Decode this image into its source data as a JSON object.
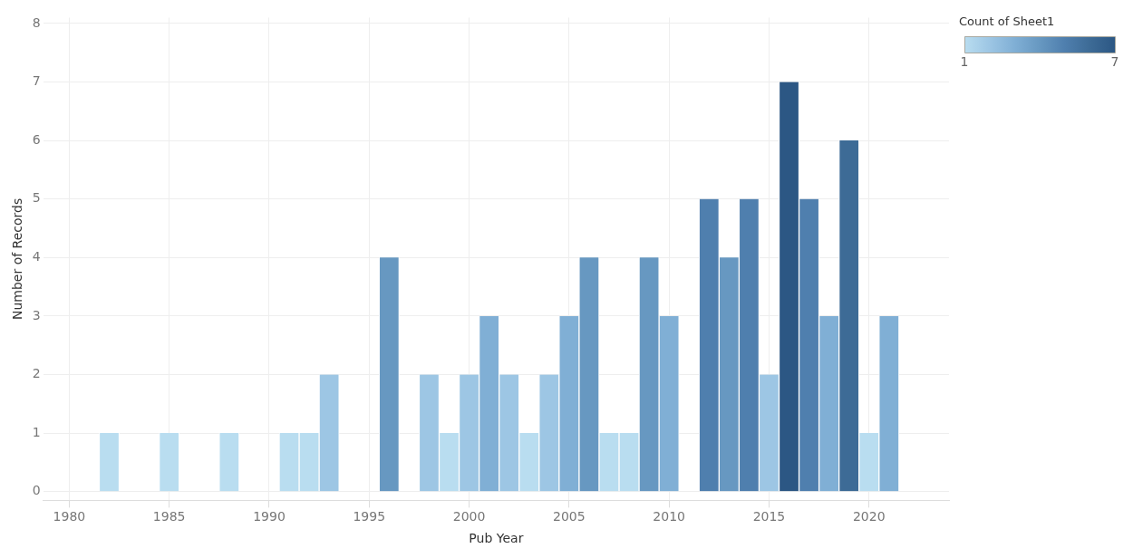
{
  "chart_data": {
    "type": "bar",
    "xlabel": "Pub Year",
    "ylabel": "Number of Records",
    "clabel": "Count of Sheet1",
    "clim": [
      1,
      7
    ],
    "cticks": [
      1,
      7
    ],
    "x": [
      1982,
      1985,
      1988,
      1991,
      1992,
      1993,
      1996,
      1998,
      1999,
      2000,
      2001,
      2002,
      2003,
      2004,
      2005,
      2006,
      2007,
      2008,
      2009,
      2010,
      2012,
      2013,
      2014,
      2015,
      2016,
      2017,
      2018,
      2019,
      2020,
      2021
    ],
    "values": [
      1,
      1,
      1,
      1,
      1,
      2,
      4,
      2,
      1,
      2,
      3,
      2,
      1,
      2,
      3,
      4,
      1,
      1,
      4,
      3,
      5,
      4,
      5,
      2,
      7,
      5,
      3,
      6,
      1,
      3
    ],
    "colors": [
      "#b9ddf0",
      "#b9ddf0",
      "#b9ddf0",
      "#b9ddf0",
      "#b9ddf0",
      "#9dc6e4",
      "#6798c1",
      "#9dc6e4",
      "#b9ddf0",
      "#9dc6e4",
      "#80afd5",
      "#9dc6e4",
      "#b9ddf0",
      "#9dc6e4",
      "#80afd5",
      "#6798c1",
      "#b9ddf0",
      "#b9ddf0",
      "#6798c1",
      "#80afd5",
      "#4f7fae",
      "#6798c1",
      "#4f7fae",
      "#9dc6e4",
      "#2c5784",
      "#4f7fae",
      "#80afd5",
      "#3d6b96",
      "#b9ddf0",
      "#80afd5"
    ],
    "xlim": [
      1978.7,
      2024
    ],
    "xticks": [
      1980,
      1985,
      1990,
      1995,
      2000,
      2005,
      2010,
      2015,
      2020
    ],
    "ylim": [
      -0.15,
      8.1
    ],
    "yticks": [
      0,
      1,
      2,
      3,
      4,
      5,
      6,
      7,
      8
    ],
    "grid": true,
    "legend": false
  }
}
